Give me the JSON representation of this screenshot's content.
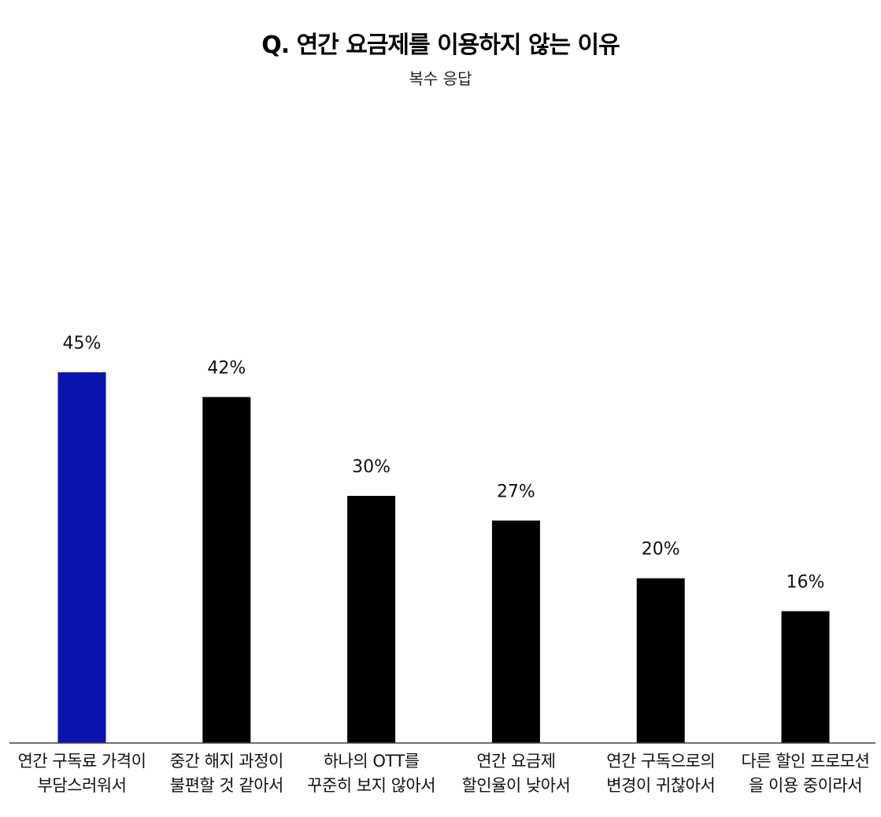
{
  "chart_data": {
    "type": "bar",
    "title": "Q. 연간 요금제를 이용하지 않는 이유",
    "subtitle": "복수 응답",
    "categories": [
      [
        "연간 구독료 가격이",
        "부담스러워서"
      ],
      [
        "중간 해지 과정이",
        "불편할 것 같아서"
      ],
      [
        "하나의 OTT를",
        "꾸준히 보지 않아서"
      ],
      [
        "연간 요금제",
        "할인율이 낮아서"
      ],
      [
        "연간 구독으로의",
        "변경이 귀찮아서"
      ],
      [
        "다른 할인 프로모션",
        "을 이용 중이라서"
      ]
    ],
    "values": [
      45,
      42,
      30,
      27,
      20,
      16
    ],
    "value_labels": [
      "45%",
      "42%",
      "30%",
      "27%",
      "20%",
      "16%"
    ],
    "unit": "%",
    "ylim": [
      0,
      45
    ],
    "grid": false,
    "highlight_index": 0,
    "colors": {
      "highlight": "#0a14ae",
      "bar": "#000000",
      "axis": "#444444"
    }
  }
}
